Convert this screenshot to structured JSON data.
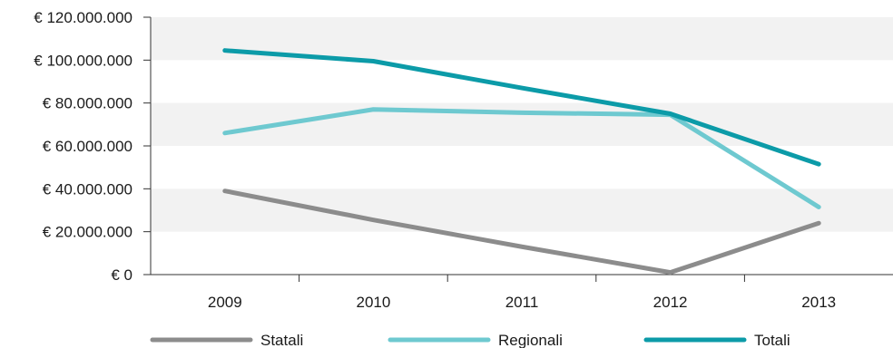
{
  "chart_data": {
    "type": "line",
    "title": "",
    "xlabel": "",
    "ylabel": "",
    "categories": [
      "2009",
      "2010",
      "2011",
      "2012",
      "2013"
    ],
    "ylim": [
      0,
      120000000
    ],
    "yticks": [
      0,
      20000000,
      40000000,
      60000000,
      80000000,
      100000000,
      120000000
    ],
    "ytick_labels": [
      "€ 0",
      "€ 20.000.000",
      "€ 40.000.000",
      "€ 60.000.000",
      "€ 80.000.000",
      "€ 100.000.000",
      "€ 120.000.000"
    ],
    "grid": "alternating horizontal bands",
    "legend_position": "bottom",
    "series": [
      {
        "name": "Statali",
        "color": "#8c8c8c",
        "values": [
          39000000,
          25500000,
          13000000,
          1000000,
          24000000
        ]
      },
      {
        "name": "Regionali",
        "color": "#6ec9d0",
        "values": [
          66000000,
          77000000,
          75500000,
          74500000,
          31500000
        ]
      },
      {
        "name": "Totali",
        "color": "#0c9ba8",
        "values": [
          104500000,
          99500000,
          87000000,
          75000000,
          51500000
        ]
      }
    ]
  }
}
